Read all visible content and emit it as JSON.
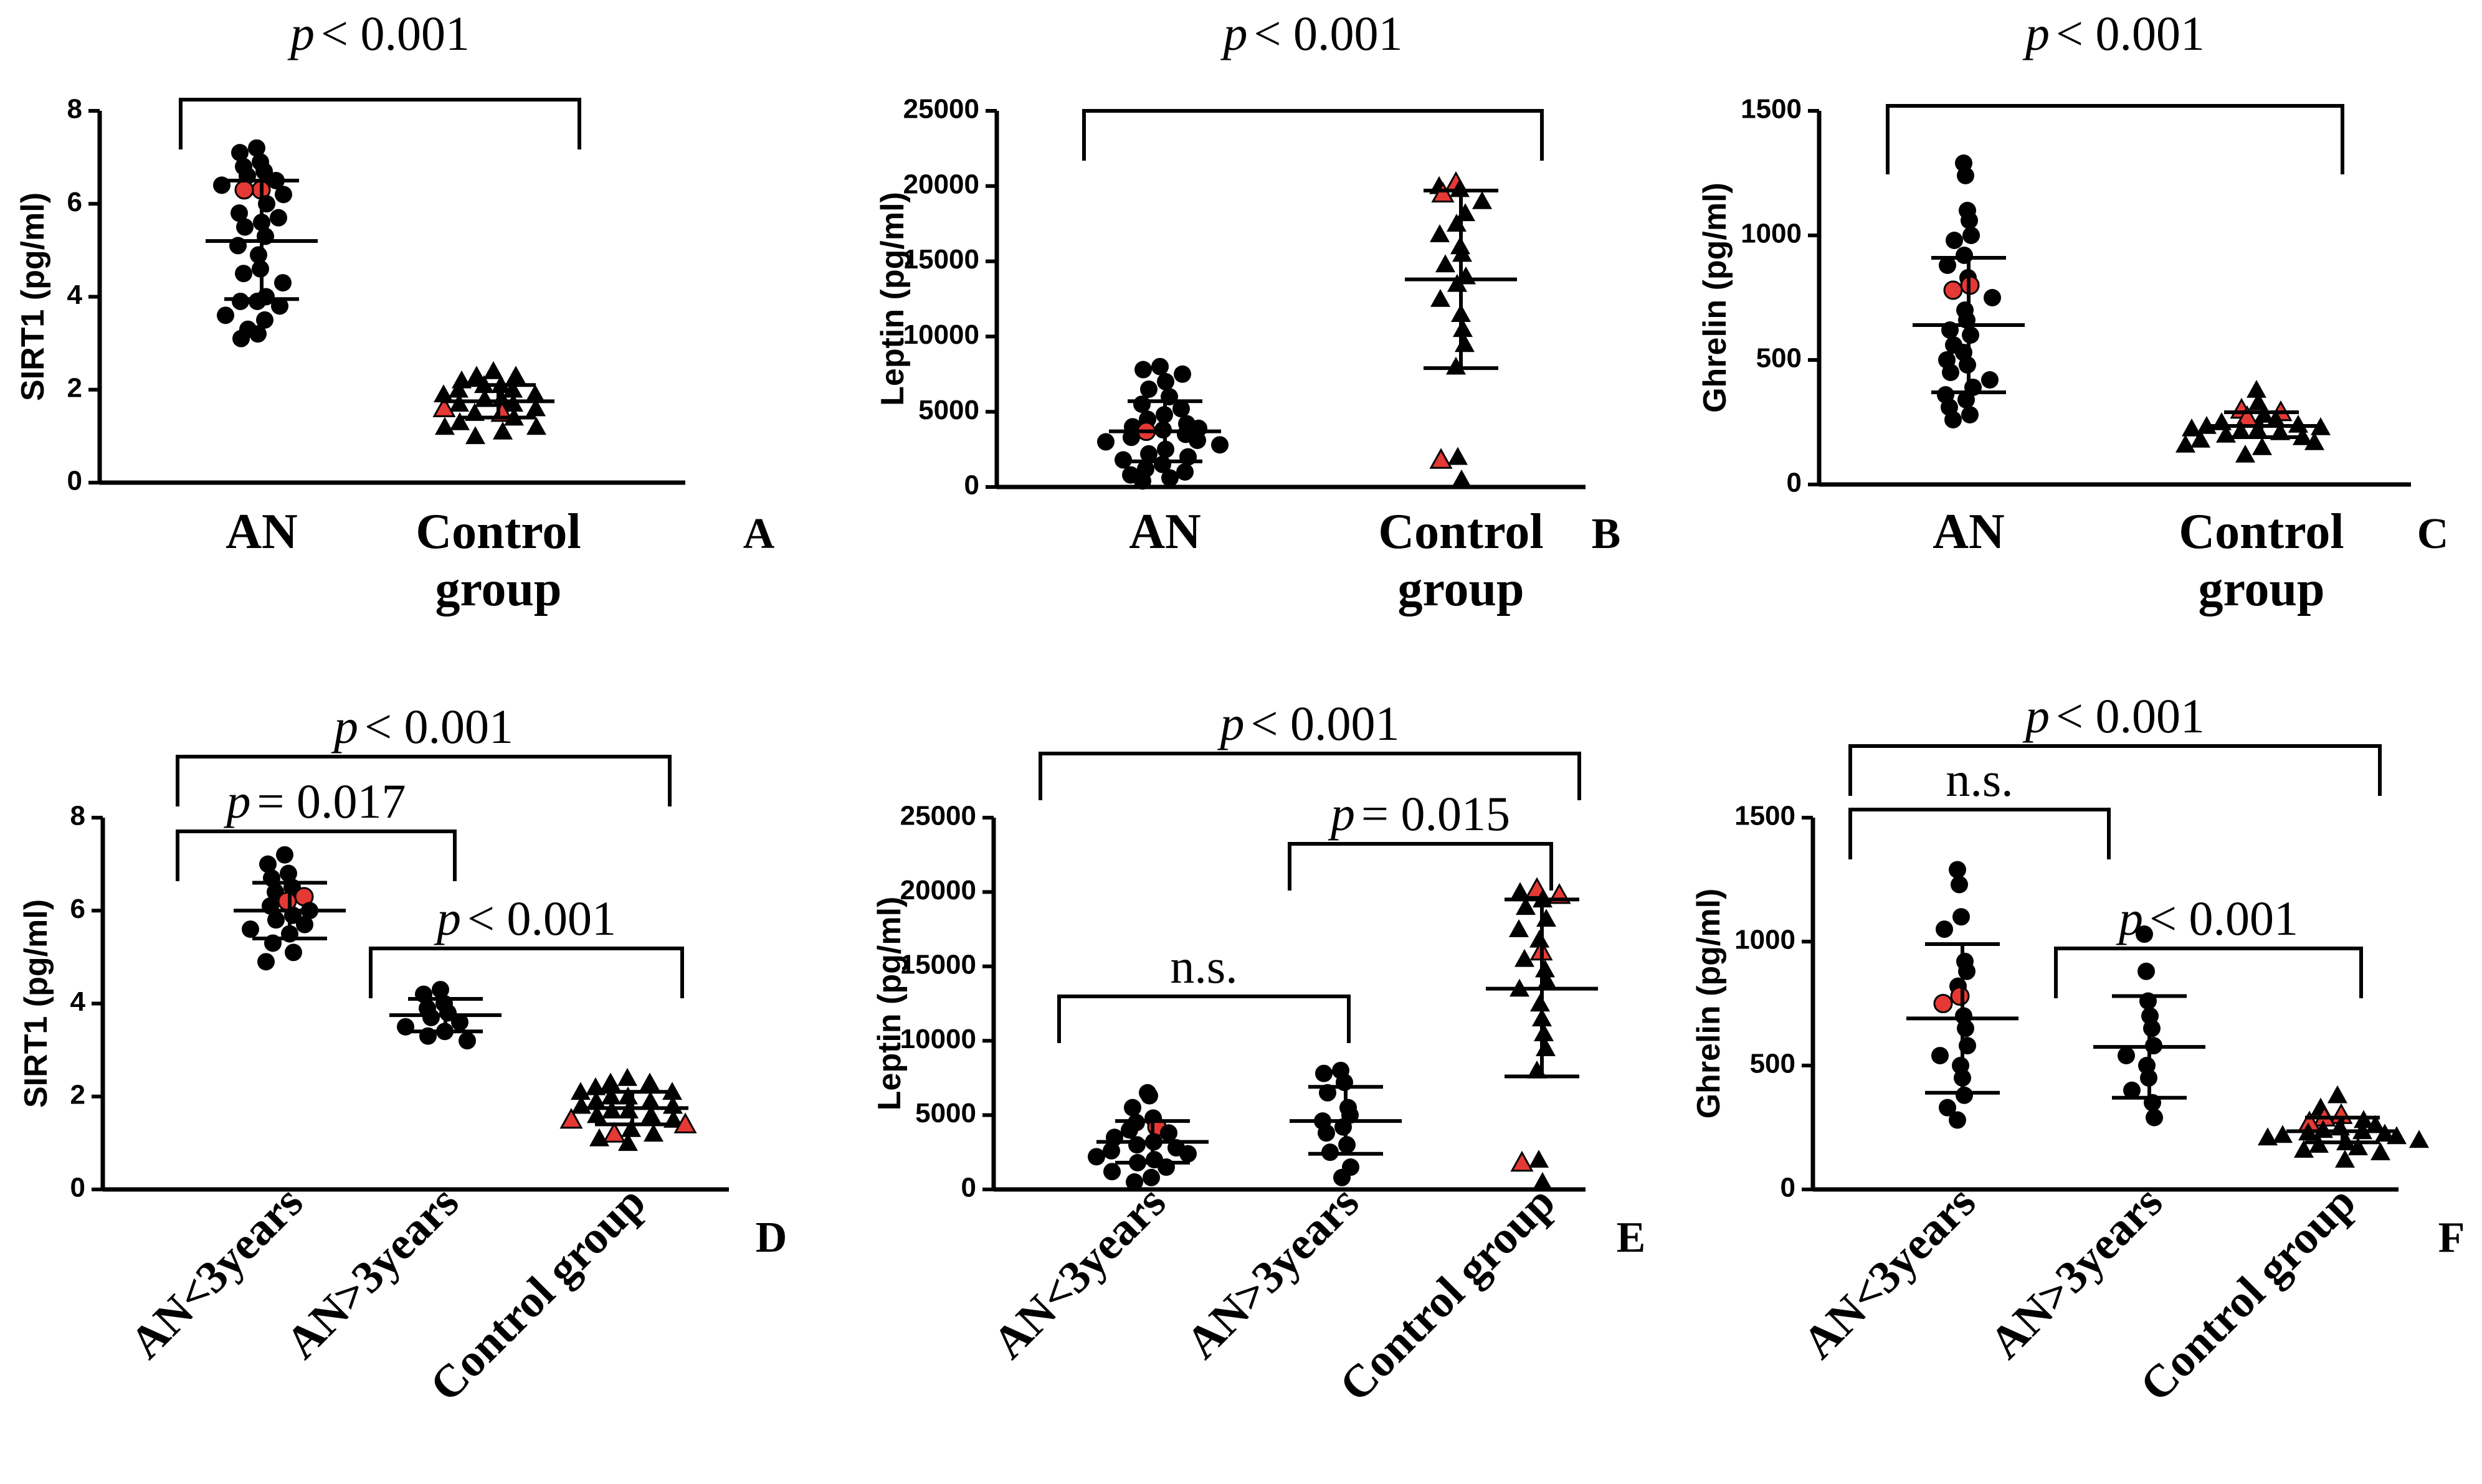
{
  "chart_data": [
    {
      "panel": "A",
      "type": "scatter",
      "ylabel": "SIRT1 (pg/ml)",
      "ylim": [
        0,
        8
      ],
      "yticks": [
        "0",
        "2",
        "4",
        "6",
        "8"
      ],
      "categories": [
        [
          "AN"
        ],
        [
          "Control",
          "group"
        ]
      ],
      "rotated": false,
      "groups": [
        {
          "marker": "circle",
          "mean": 5.2,
          "sd_low": 3.95,
          "sd_high": 6.5,
          "values": [
            7.2,
            7.1,
            6.9,
            6.8,
            6.7,
            6.6,
            6.5,
            6.4,
            6.3,
            6.3,
            6.2,
            6.0,
            5.8,
            5.7,
            5.6,
            5.5,
            5.3,
            5.1,
            4.9,
            4.6,
            4.5,
            4.3,
            4.0,
            3.9,
            3.9,
            3.8,
            3.6,
            3.5,
            3.3,
            3.2,
            3.1
          ],
          "highlight": [
            8,
            9
          ]
        },
        {
          "marker": "triangle",
          "mean": 1.75,
          "sd_low": 1.4,
          "sd_high": 2.1,
          "values": [
            2.4,
            2.3,
            2.3,
            2.2,
            2.1,
            2.1,
            2.0,
            2.0,
            1.9,
            1.9,
            1.8,
            1.8,
            1.7,
            1.7,
            1.6,
            1.6,
            1.5,
            1.5,
            1.4,
            1.3,
            1.2,
            1.2,
            1.1,
            1.0
          ],
          "highlight": [
            15,
            16
          ]
        }
      ],
      "annotations": [
        {
          "from": 0,
          "to": 1,
          "text_p": "p",
          "text_rest": "< 0.001",
          "level": 0
        }
      ]
    },
    {
      "panel": "B",
      "type": "scatter",
      "ylabel": "Leptin (pg/ml)",
      "ylim": [
        0,
        25000
      ],
      "yticks": [
        "0",
        "5000",
        "10000",
        "15000",
        "20000",
        "25000"
      ],
      "categories": [
        [
          "AN"
        ],
        [
          "Control",
          "group"
        ]
      ],
      "rotated": false,
      "groups": [
        {
          "marker": "circle",
          "mean": 3700,
          "sd_low": 1700,
          "sd_high": 5700,
          "values": [
            8000,
            7800,
            7500,
            7000,
            6500,
            6000,
            5500,
            5200,
            4800,
            4500,
            4200,
            4000,
            3900,
            3800,
            3700,
            3500,
            3300,
            3100,
            3000,
            2800,
            2500,
            2200,
            2000,
            1800,
            1500,
            1200,
            1000,
            800,
            600,
            400
          ],
          "highlight": [
            14
          ]
        },
        {
          "marker": "triangle",
          "mean": 13800,
          "sd_low": 7900,
          "sd_high": 19700,
          "values": [
            20200,
            20000,
            19800,
            19500,
            19000,
            18200,
            17500,
            16800,
            16000,
            15500,
            14800,
            14000,
            13500,
            12500,
            11500,
            10500,
            9500,
            8000,
            2000,
            1800,
            500
          ],
          "highlight": [
            0,
            3,
            19
          ]
        }
      ],
      "annotations": [
        {
          "from": 0,
          "to": 1,
          "text_p": "p",
          "text_rest": "< 0.001",
          "level": 0
        }
      ]
    },
    {
      "panel": "C",
      "type": "scatter",
      "ylabel": "Ghrelin (pg/ml)",
      "ylim": [
        0,
        1500
      ],
      "yticks": [
        "0",
        "500",
        "1000",
        "1500"
      ],
      "categories": [
        [
          "AN"
        ],
        [
          "Control",
          "group"
        ]
      ],
      "rotated": false,
      "groups": [
        {
          "marker": "circle",
          "mean": 640,
          "sd_low": 370,
          "sd_high": 910,
          "values": [
            1290,
            1240,
            1100,
            1060,
            1000,
            980,
            920,
            880,
            830,
            800,
            780,
            750,
            700,
            660,
            620,
            600,
            560,
            530,
            500,
            480,
            450,
            420,
            390,
            360,
            340,
            310,
            280,
            260
          ],
          "highlight": [
            9,
            10
          ]
        },
        {
          "marker": "triangle",
          "mean": 235,
          "sd_low": 190,
          "sd_high": 290,
          "values": [
            380,
            330,
            300,
            290,
            280,
            270,
            260,
            250,
            240,
            235,
            230,
            225,
            220,
            215,
            210,
            200,
            190,
            180,
            170,
            160,
            150,
            120
          ],
          "highlight": [
            2,
            3,
            5
          ]
        }
      ],
      "annotations": [
        {
          "from": 0,
          "to": 1,
          "text_p": "p",
          "text_rest": "< 0.001",
          "level": 0
        }
      ]
    },
    {
      "panel": "D",
      "type": "scatter",
      "ylabel": "SIRT1 (pg/ml)",
      "ylim": [
        0,
        8
      ],
      "yticks": [
        "0",
        "2",
        "4",
        "6",
        "8"
      ],
      "categories": [
        [
          "AN<3years"
        ],
        [
          "AN>3years"
        ],
        [
          "Control group"
        ]
      ],
      "rotated": true,
      "groups": [
        {
          "marker": "circle",
          "mean": 6.0,
          "sd_low": 5.4,
          "sd_high": 6.6,
          "values": [
            7.2,
            7.0,
            6.8,
            6.7,
            6.5,
            6.4,
            6.3,
            6.2,
            6.1,
            6.0,
            5.9,
            5.8,
            5.7,
            5.6,
            5.5,
            5.3,
            5.1,
            4.9
          ],
          "highlight": [
            6,
            7
          ]
        },
        {
          "marker": "circle",
          "mean": 3.75,
          "sd_low": 3.4,
          "sd_high": 4.1,
          "values": [
            4.3,
            4.2,
            4.0,
            3.9,
            3.8,
            3.7,
            3.6,
            3.5,
            3.4,
            3.3,
            3.2
          ],
          "highlight": []
        },
        {
          "marker": "triangle",
          "mean": 1.75,
          "sd_low": 1.4,
          "sd_high": 2.1,
          "values": [
            2.4,
            2.3,
            2.3,
            2.2,
            2.1,
            2.1,
            2.0,
            2.0,
            1.9,
            1.9,
            1.8,
            1.8,
            1.7,
            1.7,
            1.6,
            1.6,
            1.5,
            1.5,
            1.4,
            1.3,
            1.2,
            1.2,
            1.1,
            1.0
          ],
          "highlight": [
            17,
            18,
            20
          ]
        }
      ],
      "annotations": [
        {
          "from": 0,
          "to": 2,
          "text_p": "p",
          "text_rest": "< 0.001",
          "level": 0
        },
        {
          "from": 0,
          "to": 1,
          "text_p": "p",
          "text_rest": "= 0.017",
          "level": 1
        },
        {
          "from": 1,
          "to": 2,
          "text_p": "p",
          "text_rest": "< 0.001",
          "level": 2
        }
      ]
    },
    {
      "panel": "E",
      "type": "scatter",
      "ylabel": "Leptin (pg/ml)",
      "ylim": [
        0,
        25000
      ],
      "yticks": [
        "0",
        "5000",
        "10000",
        "15000",
        "20000",
        "25000"
      ],
      "categories": [
        [
          "AN<3years"
        ],
        [
          "AN>3years"
        ],
        [
          "Control group"
        ]
      ],
      "rotated": true,
      "groups": [
        {
          "marker": "circle",
          "mean": 3200,
          "sd_low": 1800,
          "sd_high": 4600,
          "values": [
            6500,
            6300,
            5500,
            4800,
            4500,
            4200,
            4000,
            3800,
            3500,
            3200,
            3000,
            2800,
            2600,
            2400,
            2200,
            2000,
            1800,
            1500,
            1200,
            800,
            500
          ],
          "highlight": [
            5
          ]
        },
        {
          "marker": "circle",
          "mean": 4600,
          "sd_low": 2400,
          "sd_high": 6900,
          "values": [
            8000,
            7800,
            7200,
            6500,
            5500,
            5000,
            4600,
            4200,
            3800,
            3000,
            2500,
            1500,
            800
          ],
          "highlight": []
        },
        {
          "marker": "triangle",
          "mean": 13500,
          "sd_low": 7600,
          "sd_high": 19500,
          "values": [
            20200,
            20000,
            19800,
            19500,
            19000,
            18200,
            17500,
            16800,
            16000,
            15500,
            14800,
            14000,
            13500,
            12500,
            11500,
            10500,
            9500,
            8000,
            2000,
            1800,
            500
          ],
          "highlight": [
            0,
            2,
            8,
            19
          ]
        }
      ],
      "annotations": [
        {
          "from": 0,
          "to": 2,
          "text_p": "p",
          "text_rest": "< 0.001",
          "level": 0
        },
        {
          "from": 1,
          "to": 2,
          "text_p": "p",
          "text_rest": "= 0.015",
          "level": 1
        },
        {
          "from": 0,
          "to": 1,
          "text_p": "",
          "text_rest": "n.s.",
          "level": 2
        }
      ]
    },
    {
      "panel": "F",
      "type": "scatter",
      "ylabel": "Ghrelin (pg/ml)",
      "ylim": [
        0,
        1500
      ],
      "yticks": [
        "0",
        "500",
        "1000",
        "1500"
      ],
      "categories": [
        [
          "AN<3years"
        ],
        [
          "AN>3years"
        ],
        [
          "Control group"
        ]
      ],
      "rotated": true,
      "groups": [
        {
          "marker": "circle",
          "mean": 690,
          "sd_low": 390,
          "sd_high": 990,
          "values": [
            1290,
            1230,
            1100,
            1050,
            920,
            880,
            820,
            780,
            750,
            700,
            650,
            580,
            540,
            500,
            450,
            380,
            330,
            280
          ],
          "highlight": [
            7,
            8
          ]
        },
        {
          "marker": "circle",
          "mean": 575,
          "sd_low": 370,
          "sd_high": 780,
          "values": [
            1030,
            880,
            760,
            700,
            650,
            580,
            540,
            500,
            450,
            400,
            350,
            290
          ],
          "highlight": []
        },
        {
          "marker": "triangle",
          "mean": 235,
          "sd_low": 190,
          "sd_high": 290,
          "values": [
            380,
            330,
            300,
            290,
            280,
            270,
            260,
            250,
            240,
            235,
            230,
            225,
            220,
            215,
            210,
            200,
            190,
            180,
            170,
            160,
            150,
            120
          ],
          "highlight": [
            2,
            3,
            5
          ]
        }
      ],
      "annotations": [
        {
          "from": 0,
          "to": 2,
          "text_p": "p",
          "text_rest": "< 0.001",
          "level": 0
        },
        {
          "from": 0,
          "to": 1,
          "text_p": "",
          "text_rest": "n.s.",
          "level": 1
        },
        {
          "from": 1,
          "to": 2,
          "text_p": "p",
          "text_rest": "< 0.001",
          "level": 2
        }
      ]
    }
  ],
  "colors": {
    "marker": "#000000",
    "highlight": "#e53935"
  }
}
